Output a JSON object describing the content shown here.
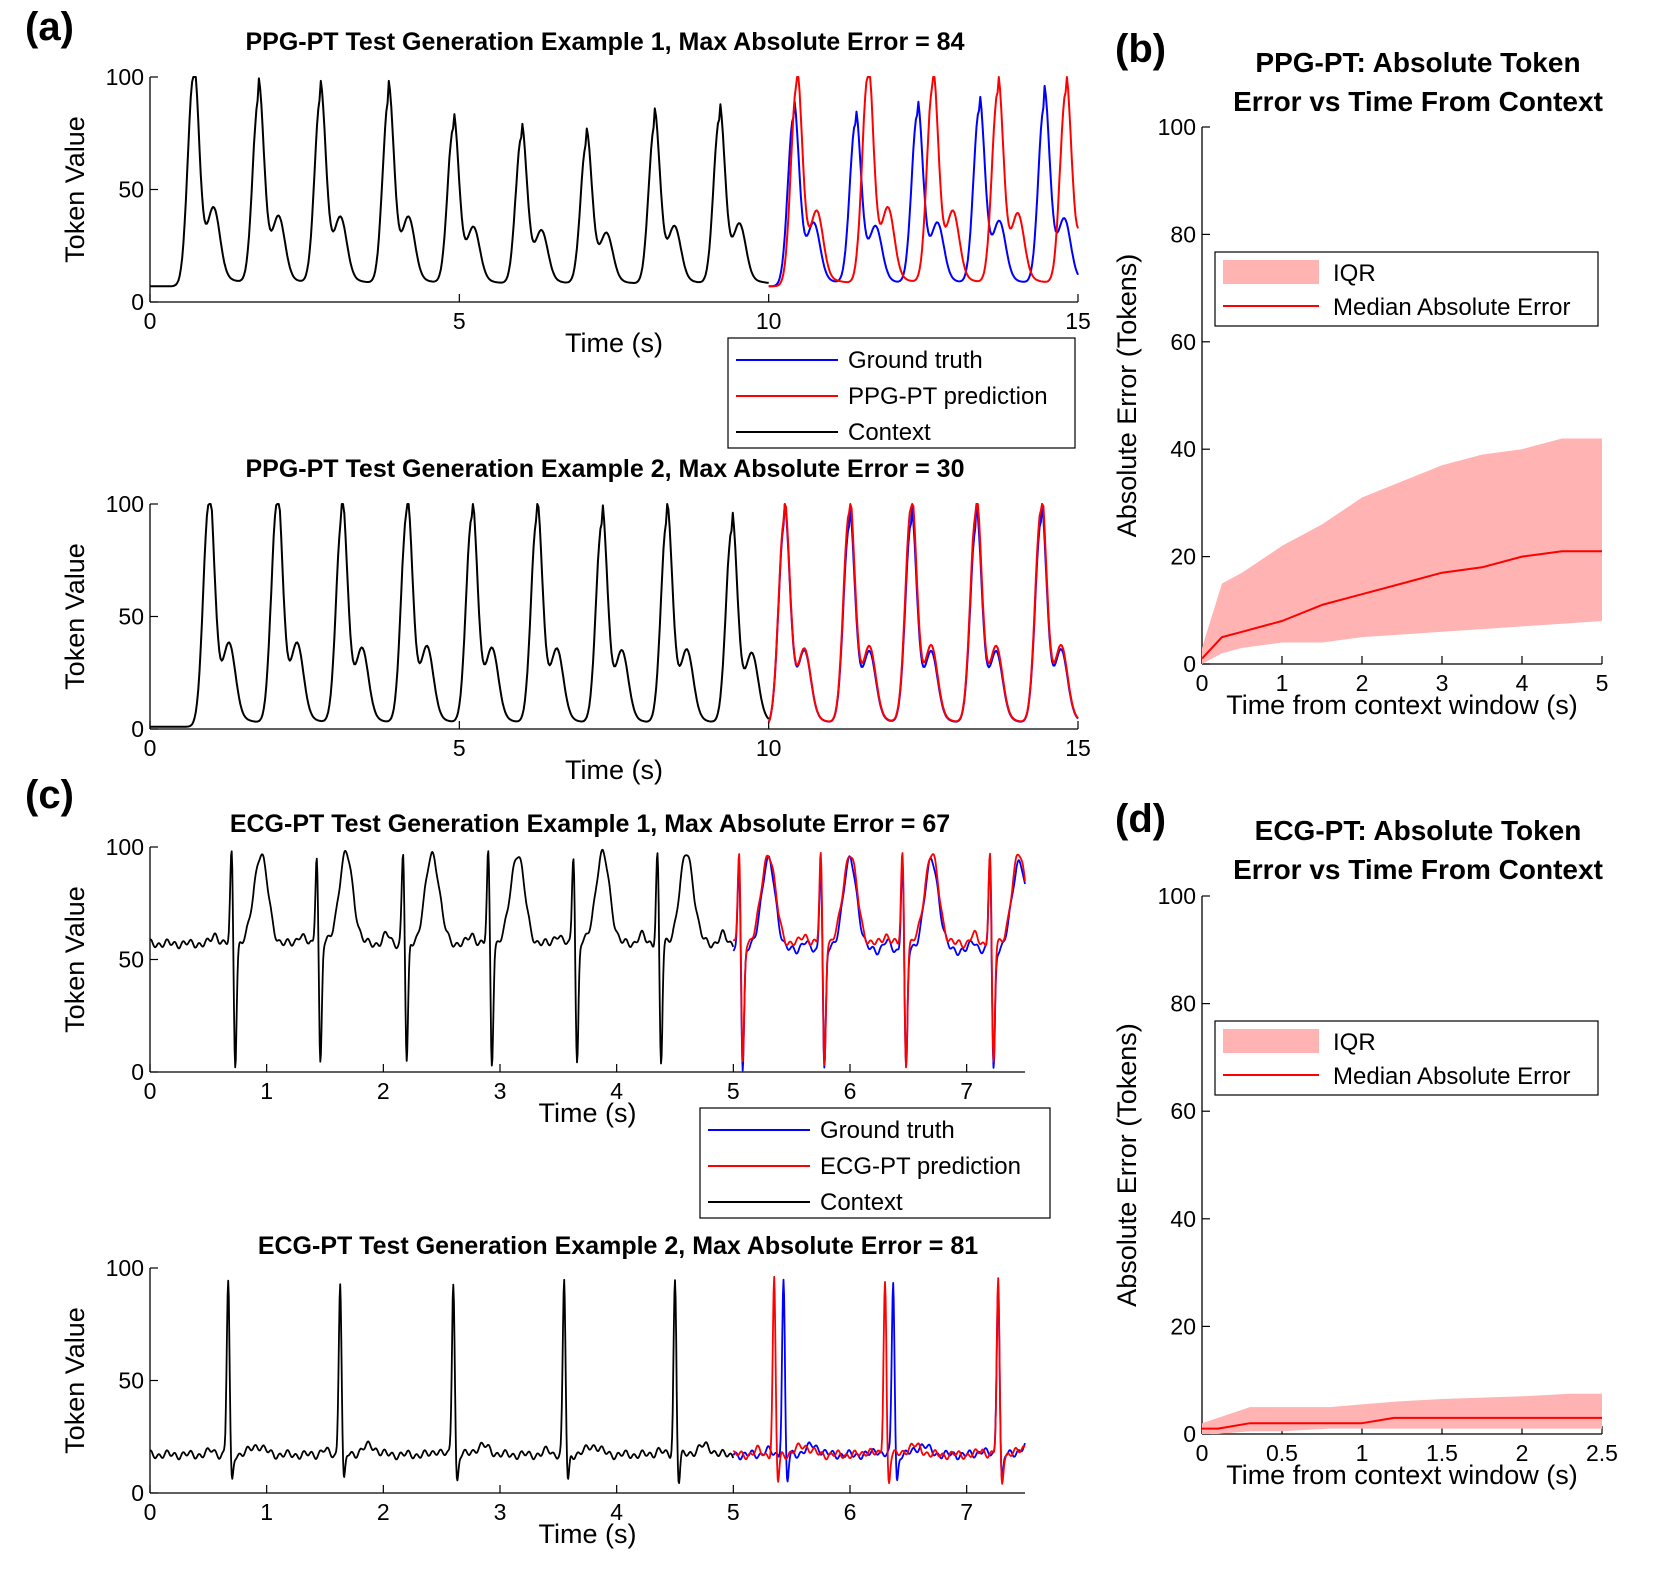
{
  "colors": {
    "ground_truth": "#0000ff",
    "prediction": "#ff0000",
    "context": "#000000",
    "iqr_fill": "#ffb3b3",
    "median": "#ff0000"
  },
  "panel_labels": [
    "(a)",
    "(b)",
    "(c)",
    "(d)"
  ],
  "chart_data": [
    {
      "id": "ppg1",
      "type": "line",
      "title": "PPG-PT Test Generation Example 1, Max Absolute Error = 84",
      "xlabel": "Time (s)",
      "ylabel": "Token Value",
      "xlim": [
        0,
        15
      ],
      "ylim": [
        0,
        100
      ],
      "xticks": [
        0,
        5,
        10,
        15
      ],
      "yticks": [
        0,
        50,
        100
      ],
      "context_end": 10,
      "context": {
        "baseline": 7,
        "peak_times": [
          0.7,
          1.75,
          2.75,
          3.85,
          4.9,
          6.0,
          7.05,
          8.15,
          9.2
        ],
        "peak_values": [
          100,
          90,
          89,
          89,
          77,
          73,
          70,
          78,
          81
        ]
      },
      "ground_truth": {
        "peak_times": [
          10.4,
          11.4,
          12.4,
          13.4,
          14.45
        ],
        "peak_values": [
          82,
          78,
          82,
          84,
          87
        ]
      },
      "prediction": {
        "peak_times": [
          10.45,
          11.6,
          12.65,
          13.7,
          14.8
        ],
        "peak_values": [
          96,
          100,
          96,
          93,
          93
        ]
      },
      "legend": [
        "Ground truth",
        "PPG-PT prediction",
        "Context"
      ]
    },
    {
      "id": "ppg2",
      "type": "line",
      "title": "PPG-PT Test Generation Example 2, Max Absolute Error = 30",
      "xlabel": "Time (s)",
      "ylabel": "Token Value",
      "xlim": [
        0,
        15
      ],
      "ylim": [
        0,
        100
      ],
      "xticks": [
        0,
        5,
        10,
        15
      ],
      "yticks": [
        0,
        50,
        100
      ],
      "context_end": 10,
      "context": {
        "baseline": 1,
        "peak_times": [
          0.95,
          2.05,
          3.1,
          4.15,
          5.2,
          6.25,
          7.3,
          8.35,
          9.4
        ],
        "peak_values": [
          100,
          100,
          94,
          96,
          94,
          93,
          91,
          92,
          88
        ]
      },
      "ground_truth": {
        "peak_times": [
          10.25,
          11.3,
          12.3,
          13.35,
          14.4
        ],
        "peak_values": [
          91,
          90,
          90,
          90,
          92
        ]
      },
      "prediction": {
        "peak_times": [
          10.25,
          11.3,
          12.3,
          13.35,
          14.4
        ],
        "peak_values": [
          93,
          96,
          97,
          96,
          97
        ]
      }
    },
    {
      "id": "ppg_err",
      "type": "area",
      "title": "PPG-PT: Absolute Token Error vs Time From Context",
      "title_lines": [
        "PPG-PT: Absolute Token",
        "Error vs Time From Context"
      ],
      "xlabel": "Time from context window (s)",
      "ylabel": "Absolute Error (Tokens)",
      "xlim": [
        0,
        5
      ],
      "ylim": [
        0,
        100
      ],
      "xticks": [
        0,
        1,
        2,
        3,
        4,
        5
      ],
      "yticks": [
        0,
        20,
        40,
        60,
        80,
        100
      ],
      "x": [
        0,
        0.25,
        0.5,
        1,
        1.5,
        2,
        2.5,
        3,
        3.5,
        4,
        4.5,
        5
      ],
      "iqr_low": [
        0,
        2,
        3,
        4,
        4,
        5,
        5.5,
        6,
        6.5,
        7,
        7.5,
        8
      ],
      "iqr_high": [
        3,
        15,
        17,
        22,
        26,
        31,
        34,
        37,
        39,
        40,
        42,
        42
      ],
      "median": [
        1,
        5,
        6,
        8,
        11,
        13,
        15,
        17,
        18,
        20,
        21,
        21
      ],
      "legend": [
        "IQR",
        "Median Absolute Error"
      ]
    },
    {
      "id": "ecg1",
      "type": "line",
      "title": "ECG-PT Test Generation Example 1, Max Absolute Error = 67",
      "xlabel": "Time (s)",
      "ylabel": "Token Value",
      "xlim": [
        0,
        7.5
      ],
      "ylim": [
        0,
        100
      ],
      "xticks": [
        0,
        1,
        2,
        3,
        4,
        5,
        6,
        7
      ],
      "yticks": [
        0,
        50,
        100
      ],
      "context_end": 5,
      "baseline": 57,
      "beat_times": [
        0.7,
        1.43,
        2.17,
        2.9,
        3.63,
        4.35,
        5.05,
        5.75,
        6.45,
        7.2
      ],
      "legend": [
        "Ground truth",
        "ECG-PT prediction",
        "Context"
      ]
    },
    {
      "id": "ecg2",
      "type": "line",
      "title": "ECG-PT Test Generation Example 2, Max Absolute Error = 81",
      "xlabel": "Time (s)",
      "ylabel": "Token Value",
      "xlim": [
        0,
        7.5
      ],
      "ylim": [
        0,
        100
      ],
      "xticks": [
        0,
        1,
        2,
        3,
        4,
        5,
        6,
        7
      ],
      "yticks": [
        0,
        50,
        100
      ],
      "context_end": 5,
      "baseline": 17,
      "beat_times": [
        0.67,
        1.63,
        2.6,
        3.55,
        4.5
      ],
      "ground_truth_beats": [
        5.43,
        6.37,
        7.27
      ],
      "prediction_beats": [
        5.35,
        6.3,
        7.27
      ]
    },
    {
      "id": "ecg_err",
      "type": "area",
      "title": "ECG-PT: Absolute Token Error vs Time From Context",
      "title_lines": [
        "ECG-PT: Absolute Token",
        "Error vs Time From Context"
      ],
      "xlabel": "Time from context window (s)",
      "ylabel": "Absolute Error (Tokens)",
      "xlim": [
        0,
        2.5
      ],
      "ylim": [
        0,
        100
      ],
      "xticks": [
        "0",
        "0.5",
        "1",
        "1.5",
        "2",
        "2.5"
      ],
      "yticks": [
        0,
        20,
        40,
        60,
        80,
        100
      ],
      "x": [
        0,
        0.1,
        0.3,
        0.5,
        0.8,
        1.0,
        1.2,
        1.5,
        2.0,
        2.3,
        2.5
      ],
      "iqr_low": [
        0,
        0,
        0.5,
        0.5,
        1,
        1,
        1,
        1,
        1,
        1,
        1
      ],
      "iqr_high": [
        2,
        3,
        5,
        5,
        5,
        5.5,
        6,
        6.5,
        7,
        7.5,
        7.5
      ],
      "median": [
        1,
        1,
        2,
        2,
        2,
        2,
        3,
        3,
        3,
        3,
        3
      ],
      "legend": [
        "IQR",
        "Median Absolute Error"
      ]
    }
  ]
}
